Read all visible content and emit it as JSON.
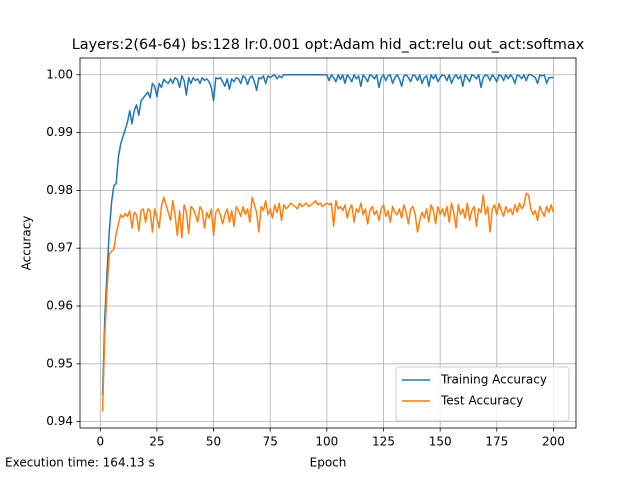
{
  "chart_data": {
    "type": "line",
    "title": "Layers:2(64-64) bs:128 lr:0.001 opt:Adam hid_act:relu out_act:softmax",
    "x_label": "Epoch",
    "y_label": "Accuracy",
    "annotation": "Execution time: 164.13 s",
    "grid": true,
    "legend": "lower right",
    "xlim": [
      -8.95,
      209.95
    ],
    "xticks": [
      0,
      25,
      50,
      75,
      100,
      125,
      150,
      175,
      200
    ],
    "ylim": [
      0.9389,
      1.0029
    ],
    "yticks": [
      0.94,
      0.95,
      0.96,
      0.97,
      0.98,
      0.99,
      {
        "value": 1,
        "label": "1.00"
      }
    ],
    "x": [
      1,
      2,
      3,
      4,
      5,
      6,
      7,
      8,
      9,
      10,
      11,
      12,
      13,
      14,
      15,
      16,
      17,
      18,
      19,
      20,
      21,
      22,
      23,
      24,
      25,
      26,
      27,
      28,
      29,
      30,
      31,
      32,
      33,
      34,
      35,
      36,
      37,
      38,
      39,
      40,
      41,
      42,
      43,
      44,
      45,
      46,
      47,
      48,
      49,
      50,
      51,
      52,
      53,
      54,
      55,
      56,
      57,
      58,
      59,
      60,
      61,
      62,
      63,
      64,
      65,
      66,
      67,
      68,
      69,
      70,
      71,
      72,
      73,
      74,
      75,
      76,
      77,
      78,
      79,
      80,
      81,
      82,
      83,
      84,
      85,
      86,
      87,
      88,
      89,
      90,
      91,
      92,
      93,
      94,
      95,
      96,
      97,
      98,
      99,
      100,
      101,
      102,
      103,
      104,
      105,
      106,
      107,
      108,
      109,
      110,
      111,
      112,
      113,
      114,
      115,
      116,
      117,
      118,
      119,
      120,
      121,
      122,
      123,
      124,
      125,
      126,
      127,
      128,
      129,
      130,
      131,
      132,
      133,
      134,
      135,
      136,
      137,
      138,
      139,
      140,
      141,
      142,
      143,
      144,
      145,
      146,
      147,
      148,
      149,
      150,
      151,
      152,
      153,
      154,
      155,
      156,
      157,
      158,
      159,
      160,
      161,
      162,
      163,
      164,
      165,
      166,
      167,
      168,
      169,
      170,
      171,
      172,
      173,
      174,
      175,
      176,
      177,
      178,
      179,
      180,
      181,
      182,
      183,
      184,
      185,
      186,
      187,
      188,
      189,
      190,
      191,
      192,
      193,
      194,
      195,
      196,
      197,
      198,
      199,
      200
    ],
    "series": [
      {
        "name": "Training Accuracy",
        "color": "#1f77b4",
        "values": [
          0.9445,
          0.958,
          0.966,
          0.973,
          0.978,
          0.9808,
          0.9812,
          0.9858,
          0.988,
          0.9893,
          0.9905,
          0.9918,
          0.9938,
          0.9915,
          0.9938,
          0.9948,
          0.993,
          0.9955,
          0.996,
          0.9965,
          0.997,
          0.996,
          0.9985,
          0.998,
          0.9962,
          0.9985,
          0.9978,
          0.9992,
          0.9988,
          0.9985,
          0.9993,
          0.9985,
          0.9995,
          0.9992,
          0.9978,
          0.9998,
          0.999,
          0.9965,
          0.9995,
          0.9985,
          0.9995,
          0.999,
          0.9993,
          0.9985,
          0.9995,
          0.999,
          0.9993,
          0.9988,
          0.9978,
          0.9955,
          0.9995,
          0.9993,
          0.9995,
          0.9988,
          0.998,
          0.9993,
          0.9975,
          0.9993,
          0.9988,
          0.9995,
          0.9993,
          0.9985,
          0.9998,
          0.9995,
          0.9983,
          0.9995,
          0.9998,
          0.9988,
          0.9973,
          0.9995,
          0.9993,
          0.9998,
          0.9985,
          0.9998,
          0.9995,
          0.9998,
          1.0,
          0.9993,
          0.9998,
          0.9995,
          1.0,
          1.0,
          1.0,
          1.0,
          1.0,
          1.0,
          1.0,
          1.0,
          1.0,
          1.0,
          1.0,
          1.0,
          1.0,
          1.0,
          1.0,
          1.0,
          1.0,
          1.0,
          1.0,
          1.0,
          0.999,
          1.0,
          0.9995,
          0.9988,
          1.0,
          0.9992,
          1.0,
          0.9985,
          1.0,
          0.9995,
          0.9988,
          1.0,
          0.9993,
          0.9998,
          0.998,
          1.0,
          0.9995,
          0.9988,
          1.0,
          0.9998,
          0.9993,
          1.0,
          0.9978,
          0.9995,
          1.0,
          0.999,
          0.9998,
          1.0,
          0.9985,
          0.9995,
          1.0,
          0.9993,
          0.998,
          0.9998,
          1.0,
          0.9995,
          0.9988,
          1.0,
          0.9998,
          0.999,
          1.0,
          0.9985,
          0.9995,
          0.9998,
          0.998,
          1.0,
          0.9993,
          1.0,
          0.9988,
          0.9995,
          1.0,
          0.9998,
          0.999,
          1.0,
          0.9985,
          0.9995,
          1.0,
          0.9993,
          0.9998,
          0.998,
          1.0,
          0.9995,
          0.9988,
          1.0,
          0.9998,
          0.9993,
          1.0,
          0.9978,
          0.9995,
          1.0,
          0.9998,
          0.999,
          1.0,
          0.9995,
          0.9988,
          1.0,
          0.9998,
          0.999,
          1.0,
          0.9993,
          1.0,
          0.9995,
          0.9985,
          1.0,
          0.9998,
          0.9993,
          1.0,
          0.999,
          1.0,
          1.0,
          0.9998,
          0.9995,
          0.9985,
          1.0,
          0.9998,
          1.0,
          0.9985,
          0.9995,
          0.9995,
          0.9995
        ]
      },
      {
        "name": "Test Accuracy",
        "color": "#ff7f0e",
        "values": [
          0.9418,
          0.955,
          0.963,
          0.969,
          0.9695,
          0.9698,
          0.9725,
          0.9742,
          0.9758,
          0.9753,
          0.976,
          0.9755,
          0.9765,
          0.9735,
          0.9762,
          0.9758,
          0.973,
          0.9765,
          0.9768,
          0.9745,
          0.9768,
          0.9765,
          0.9728,
          0.9768,
          0.9752,
          0.9735,
          0.9772,
          0.9788,
          0.9775,
          0.9762,
          0.9748,
          0.9782,
          0.9758,
          0.9722,
          0.9765,
          0.9718,
          0.9775,
          0.9762,
          0.9725,
          0.9772,
          0.9768,
          0.9758,
          0.9745,
          0.9772,
          0.9765,
          0.9735,
          0.9762,
          0.9752,
          0.9768,
          0.9722,
          0.9762,
          0.9768,
          0.9758,
          0.9742,
          0.9758,
          0.9768,
          0.9745,
          0.9765,
          0.9738,
          0.9772,
          0.9765,
          0.9755,
          0.9772,
          0.9758,
          0.9768,
          0.9745,
          0.9788,
          0.9775,
          0.9762,
          0.9728,
          0.9772,
          0.9765,
          0.9782,
          0.9758,
          0.9768,
          0.9752,
          0.9775,
          0.9762,
          0.9778,
          0.9748,
          0.9775,
          0.9768,
          0.9772,
          0.9778,
          0.9775,
          0.9772,
          0.9768,
          0.9778,
          0.9772,
          0.9775,
          0.9778,
          0.9772,
          0.9775,
          0.9778,
          0.9782,
          0.9775,
          0.9778,
          0.9772,
          0.9775,
          0.9778,
          0.9775,
          0.9778,
          0.9738,
          0.9782,
          0.9768,
          0.9772,
          0.9765,
          0.9775,
          0.9752,
          0.9768,
          0.9775,
          0.9745,
          0.9768,
          0.9762,
          0.9778,
          0.9758,
          0.9768,
          0.9742,
          0.9765,
          0.9772,
          0.9758,
          0.9765,
          0.9748,
          0.9768,
          0.9775,
          0.9755,
          0.9765,
          0.9745,
          0.9772,
          0.9762,
          0.9758,
          0.9768,
          0.9752,
          0.9775,
          0.9762,
          0.9742,
          0.9768,
          0.9772,
          0.9758,
          0.9728,
          0.9748,
          0.9762,
          0.9752,
          0.9768,
          0.9745,
          0.9775,
          0.9765,
          0.9742,
          0.9772,
          0.9758,
          0.9768,
          0.9755,
          0.9772,
          0.9745,
          0.9778,
          0.9762,
          0.9735,
          0.9775,
          0.9758,
          0.9768,
          0.9752,
          0.9778,
          0.9748,
          0.9765,
          0.9772,
          0.9738,
          0.9768,
          0.9762,
          0.9792,
          0.9758,
          0.9772,
          0.9728,
          0.9768,
          0.9775,
          0.9758,
          0.9778,
          0.9765,
          0.9755,
          0.9772,
          0.9762,
          0.9768,
          0.9758,
          0.9775,
          0.9762,
          0.9778,
          0.9768,
          0.9775,
          0.9795,
          0.9792,
          0.9768,
          0.9758,
          0.9765,
          0.9748,
          0.9772,
          0.9762,
          0.9755,
          0.9772,
          0.9762,
          0.9775,
          0.9762
        ]
      }
    ]
  }
}
